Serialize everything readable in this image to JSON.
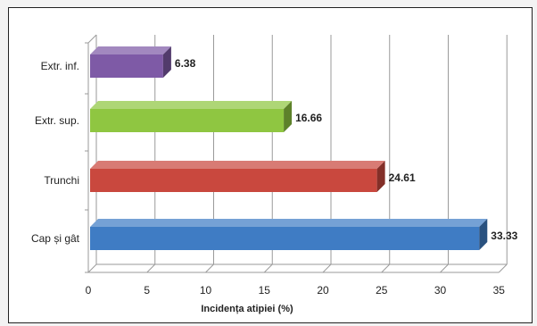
{
  "chart_data": {
    "type": "bar",
    "orientation": "horizontal",
    "categories": [
      "Extr. inf.",
      "Extr. sup.",
      "Trunchi",
      "Cap și gât"
    ],
    "values": [
      6.38,
      16.66,
      24.61,
      33.33
    ],
    "value_labels": [
      "6.38",
      "16.66",
      "24.61",
      "33.33"
    ],
    "bar_colors": [
      "#7e5aa6",
      "#8fc641",
      "#c9483e",
      "#3f7cc4"
    ],
    "xlabel": "Incidența atipiei (%)",
    "ylabel": "",
    "title": "",
    "xlim": [
      0,
      35
    ],
    "xticks": [
      0,
      5,
      10,
      15,
      20,
      25,
      30,
      35
    ],
    "grid": "vertical",
    "legend": "none",
    "style": "3d"
  }
}
